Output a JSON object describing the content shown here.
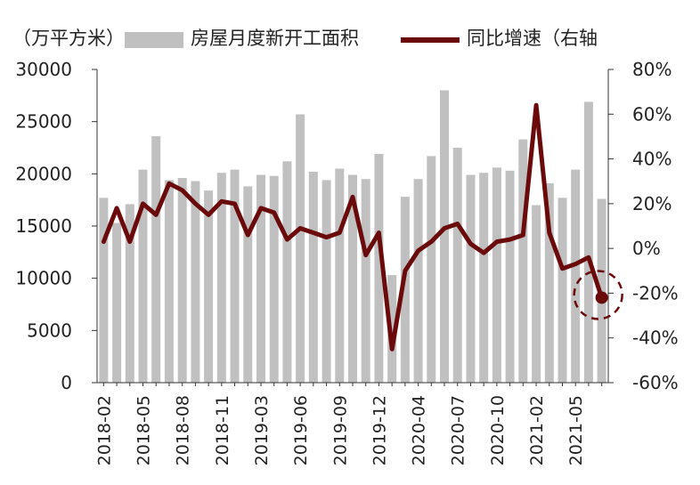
{
  "chart_data": {
    "type": "bar+line",
    "unit_label": "（万平方米）",
    "legend": {
      "bar": "房屋月度新开工面积",
      "line": "同比增速（右轴"
    },
    "colors": {
      "bar": "#c0c0c0",
      "line": "#6b0a0a",
      "marker": "#6b0a0a"
    },
    "yleft": {
      "min": 0,
      "max": 30000,
      "ticks": [
        "0",
        "5000",
        "10000",
        "15000",
        "20000",
        "25000",
        "30000"
      ]
    },
    "yright": {
      "min": -60,
      "max": 80,
      "ticks": [
        "-60%",
        "-40%",
        "-20%",
        "0%",
        "20%",
        "40%",
        "60%",
        "80%"
      ]
    },
    "x_tick_labels": [
      "2018-02",
      "2018-05",
      "2018-08",
      "2018-11",
      "2019-03",
      "2019-06",
      "2019-09",
      "2019-12",
      "2020-04",
      "2020-07",
      "2020-10",
      "2021-02",
      "2021-05"
    ],
    "months": [
      "2018-02",
      "2018-03",
      "2018-04",
      "2018-05",
      "2018-06",
      "2018-07",
      "2018-08",
      "2018-09",
      "2018-10",
      "2018-11",
      "2018-12",
      "2019-02",
      "2019-03",
      "2019-04",
      "2019-05",
      "2019-06",
      "2019-07",
      "2019-08",
      "2019-09",
      "2019-10",
      "2019-11",
      "2019-12",
      "2020-02",
      "2020-03",
      "2020-04",
      "2020-05",
      "2020-06",
      "2020-07",
      "2020-08",
      "2020-09",
      "2020-10",
      "2020-11",
      "2020-12",
      "2021-02",
      "2021-03",
      "2021-04",
      "2021-05",
      "2021-06",
      "2021-07"
    ],
    "series": [
      {
        "name": "房屋月度新开工面积",
        "kind": "bar",
        "axis": "left",
        "values": [
          17700,
          15300,
          17100,
          20400,
          23600,
          19400,
          19600,
          19300,
          18400,
          20100,
          20400,
          18800,
          19900,
          19800,
          21200,
          25700,
          20200,
          19400,
          20500,
          19900,
          19500,
          21900,
          10300,
          17800,
          19500,
          21700,
          28000,
          22500,
          19900,
          20100,
          20600,
          20300,
          23300,
          17000,
          19100,
          17700,
          20400,
          26900,
          17600
        ]
      },
      {
        "name": "同比增速（右轴）",
        "kind": "line",
        "axis": "right",
        "values": [
          3,
          18,
          3,
          20,
          15,
          29,
          26,
          20,
          15,
          21,
          20,
          6,
          18,
          16,
          4,
          9,
          7,
          5,
          7,
          23,
          -3,
          7,
          -45,
          -10,
          -1,
          3,
          9,
          11,
          2,
          -2,
          3,
          4,
          6,
          64,
          7,
          -9,
          -7,
          -4,
          -22
        ]
      }
    ],
    "highlight_index": 38
  }
}
